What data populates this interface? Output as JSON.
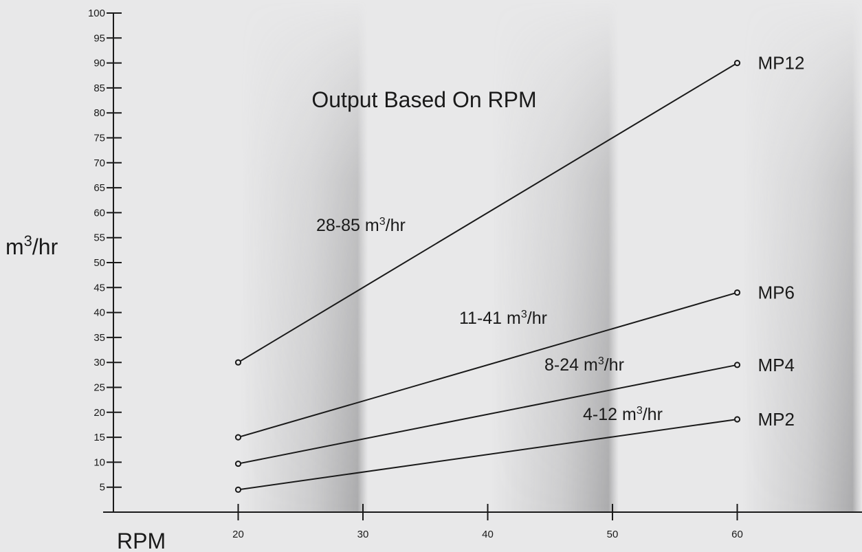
{
  "chart_data": {
    "type": "line",
    "title": "Output Based On RPM",
    "xlabel": "RPM",
    "ylabel": "m3/hr",
    "x_ticks": [
      20,
      30,
      40,
      50,
      60
    ],
    "y_ticks": [
      5,
      10,
      15,
      20,
      25,
      30,
      35,
      40,
      45,
      50,
      55,
      60,
      65,
      70,
      75,
      80,
      85,
      90,
      95,
      100
    ],
    "xlim": [
      10,
      70
    ],
    "ylim": [
      0,
      100
    ],
    "grid": false,
    "series": [
      {
        "name": "MP12",
        "x": [
          20,
          60
        ],
        "y": [
          30,
          90
        ],
        "range_label": "28-85 m3/hr"
      },
      {
        "name": "MP6",
        "x": [
          20,
          60
        ],
        "y": [
          15,
          44
        ],
        "range_label": "11-41 m3/hr"
      },
      {
        "name": "MP4",
        "x": [
          20,
          60
        ],
        "y": [
          9.7,
          29.5
        ],
        "range_label": "8-24 m3/hr"
      },
      {
        "name": "MP2",
        "x": [
          20,
          60
        ],
        "y": [
          4.5,
          18.6
        ],
        "range_label": "4-12 m3/hr"
      }
    ],
    "colors": {
      "background": "#e8e8e9",
      "line": "#1a1a1a",
      "shade": "#9a9a9c"
    }
  }
}
